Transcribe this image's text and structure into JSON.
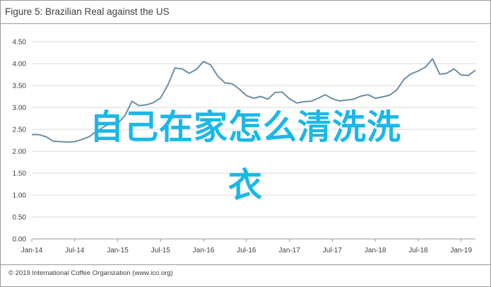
{
  "title": "Figure 5: Brazilian Real against the US",
  "footer": "© 2019 International Coffee Organization (www.ico.org)",
  "overlay": {
    "line1": "自己在家怎么清洗洗",
    "line2": "衣"
  },
  "colors": {
    "line": "#6a8fa8",
    "grid": "#d9d9d9",
    "axis": "#9a9a9a",
    "text": "#404040",
    "overlay": "#19b8e8"
  },
  "chart_data": {
    "type": "line",
    "title": "Figure 5: Brazilian Real against the US",
    "xlabel": "",
    "ylabel": "",
    "ylim": [
      0,
      4.5
    ],
    "y_ticks": [
      "0.00",
      "0.50",
      "1.00",
      "1.50",
      "2.00",
      "2.50",
      "3.00",
      "3.50",
      "4.00",
      "4.50"
    ],
    "x_ticks": [
      "Jan-14",
      "Jul-14",
      "Jan-15",
      "Jul-15",
      "Jan-16",
      "Jul-16",
      "Jan-17",
      "Jul-17",
      "Jan-18",
      "Jul-18",
      "Jan-19"
    ],
    "grid": "horizontal",
    "legend": "none",
    "series": [
      {
        "name": "",
        "x": [
          "2014-01",
          "2014-02",
          "2014-03",
          "2014-04",
          "2014-05",
          "2014-06",
          "2014-07",
          "2014-08",
          "2014-09",
          "2014-10",
          "2014-11",
          "2014-12",
          "2015-01",
          "2015-02",
          "2015-03",
          "2015-04",
          "2015-05",
          "2015-06",
          "2015-07",
          "2015-08",
          "2015-09",
          "2015-10",
          "2015-11",
          "2015-12",
          "2016-01",
          "2016-02",
          "2016-03",
          "2016-04",
          "2016-05",
          "2016-06",
          "2016-07",
          "2016-08",
          "2016-09",
          "2016-10",
          "2016-11",
          "2016-12",
          "2017-01",
          "2017-02",
          "2017-03",
          "2017-04",
          "2017-05",
          "2017-06",
          "2017-07",
          "2017-08",
          "2017-09",
          "2017-10",
          "2017-11",
          "2017-12",
          "2018-01",
          "2018-02",
          "2018-03",
          "2018-04",
          "2018-05",
          "2018-06",
          "2018-07",
          "2018-08",
          "2018-09",
          "2018-10",
          "2018-11",
          "2018-12",
          "2019-01",
          "2019-02",
          "2019-03"
        ],
        "values": [
          2.38,
          2.38,
          2.33,
          2.23,
          2.22,
          2.21,
          2.22,
          2.27,
          2.33,
          2.45,
          2.55,
          2.64,
          2.63,
          2.81,
          3.14,
          3.04,
          3.06,
          3.11,
          3.22,
          3.51,
          3.9,
          3.88,
          3.78,
          3.87,
          4.05,
          3.97,
          3.71,
          3.56,
          3.54,
          3.42,
          3.27,
          3.21,
          3.25,
          3.19,
          3.34,
          3.35,
          3.2,
          3.1,
          3.13,
          3.14,
          3.21,
          3.29,
          3.2,
          3.15,
          3.17,
          3.19,
          3.26,
          3.29,
          3.21,
          3.24,
          3.28,
          3.4,
          3.64,
          3.77,
          3.83,
          3.92,
          4.11,
          3.76,
          3.78,
          3.88,
          3.74,
          3.73,
          3.85
        ]
      }
    ]
  }
}
